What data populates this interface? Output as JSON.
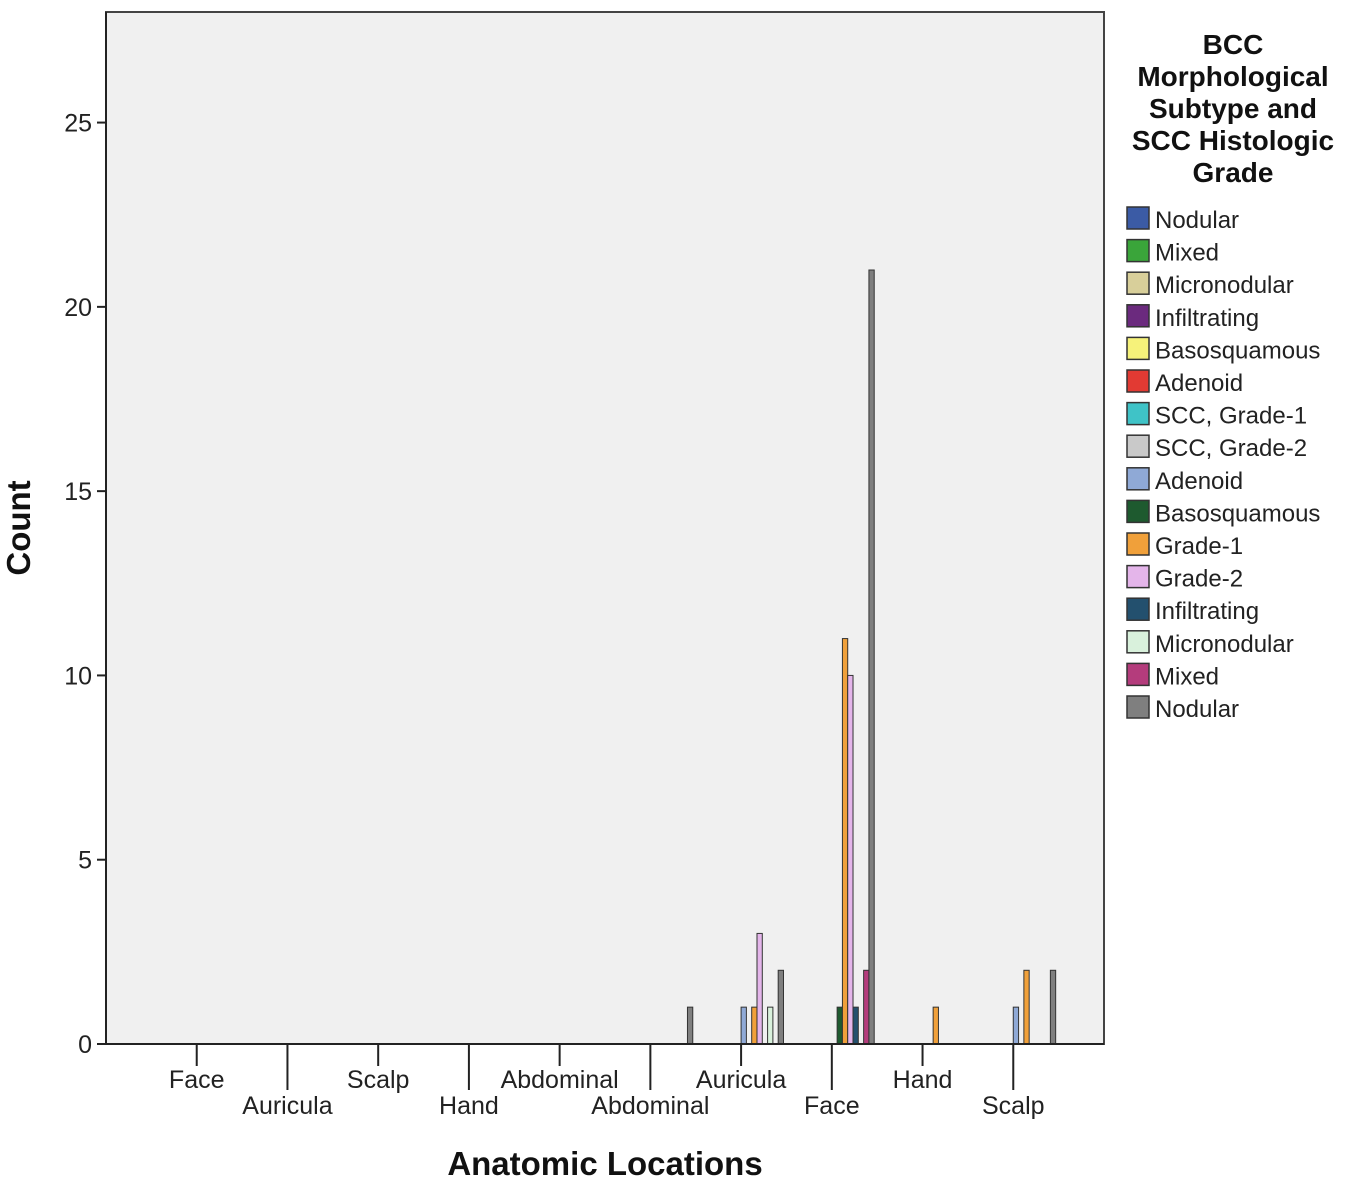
{
  "chart_data": {
    "type": "bar",
    "title": "",
    "xlabel": "Anatomic Locations",
    "ylabel": "Count",
    "ylim": [
      0,
      28
    ],
    "yticks": [
      0,
      5,
      10,
      15,
      20,
      25
    ],
    "grid": false,
    "legend_position": "right",
    "categories": [
      "Face",
      "Auricula",
      "Scalp",
      "Hand",
      "Abdominal",
      "Abdominal",
      "Auricula",
      "Face",
      "Hand",
      "Scalp"
    ],
    "legend": {
      "title": [
        "BCC",
        "Morphological",
        "Subtype and",
        "SCC Histologic",
        "Grade"
      ]
    },
    "series": [
      {
        "name": "Nodular",
        "color": "#3b5ba5",
        "values": [
          0,
          0,
          0,
          0,
          0,
          0,
          0,
          0,
          0,
          0
        ]
      },
      {
        "name": "Mixed",
        "color": "#3aa53a",
        "values": [
          0,
          0,
          0,
          0,
          0,
          0,
          0,
          0,
          0,
          0
        ]
      },
      {
        "name": "Micronodular",
        "color": "#d8cf9a",
        "values": [
          0,
          0,
          0,
          0,
          0,
          0,
          0,
          0,
          0,
          0
        ]
      },
      {
        "name": "Infiltrating",
        "color": "#6b2a7e",
        "values": [
          0,
          0,
          0,
          0,
          0,
          0,
          0,
          0,
          0,
          0
        ]
      },
      {
        "name": "Basosquamous",
        "color": "#f6f27a",
        "values": [
          0,
          0,
          0,
          0,
          0,
          0,
          0,
          0,
          0,
          0
        ]
      },
      {
        "name": "Adenoid",
        "color": "#e23a33",
        "values": [
          0,
          0,
          0,
          0,
          0,
          0,
          0,
          0,
          0,
          0
        ]
      },
      {
        "name": "SCC, Grade-1",
        "color": "#3fc3c7",
        "values": [
          0,
          0,
          0,
          0,
          0,
          0,
          0,
          0,
          0,
          0
        ]
      },
      {
        "name": "SCC, Grade-2",
        "color": "#c9c9c9",
        "values": [
          0,
          0,
          0,
          0,
          0,
          0,
          0,
          0,
          0,
          0
        ]
      },
      {
        "name": "Adenoid",
        "color": "#8fa9d6",
        "values": [
          0,
          0,
          0,
          0,
          0,
          0,
          1,
          0,
          0,
          1
        ]
      },
      {
        "name": "Basosquamous",
        "color": "#1e5a2f",
        "values": [
          0,
          0,
          0,
          0,
          0,
          0,
          0,
          1,
          0,
          0
        ]
      },
      {
        "name": "Grade-1",
        "color": "#f0a03a",
        "values": [
          0,
          0,
          0,
          0,
          0,
          0,
          1,
          11,
          1,
          2
        ]
      },
      {
        "name": "Grade-2",
        "color": "#e4b5ea",
        "values": [
          0,
          0,
          0,
          0,
          0,
          0,
          3,
          10,
          0,
          0
        ]
      },
      {
        "name": "Infiltrating",
        "color": "#23506e",
        "values": [
          0,
          0,
          0,
          0,
          0,
          0,
          0,
          1,
          0,
          0
        ]
      },
      {
        "name": "Micronodular",
        "color": "#d9f1dc",
        "values": [
          0,
          0,
          0,
          0,
          0,
          0,
          1,
          0,
          0,
          0
        ]
      },
      {
        "name": "Mixed",
        "color": "#b43c7c",
        "values": [
          0,
          0,
          0,
          0,
          0,
          0,
          0,
          2,
          0,
          0
        ]
      },
      {
        "name": "Nodular",
        "color": "#7f7f7f",
        "values": [
          0,
          0,
          0,
          0,
          0,
          1,
          2,
          21,
          0,
          2
        ]
      }
    ]
  }
}
